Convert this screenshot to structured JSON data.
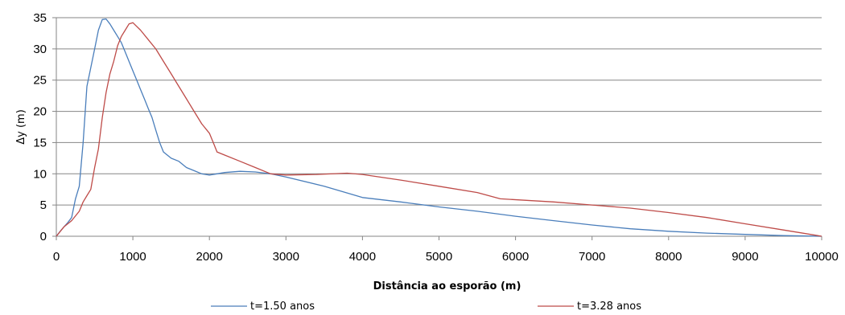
{
  "chart_data": {
    "type": "line",
    "xlabel": "Distância ao esporão (m)",
    "ylabel": "Δy (m)",
    "xlim": [
      0,
      10000
    ],
    "ylim": [
      0,
      35
    ],
    "xticks": [
      "0",
      "1000",
      "2000",
      "3000",
      "4000",
      "5000",
      "6000",
      "7000",
      "8000",
      "9000",
      "10000"
    ],
    "yticks": [
      "0",
      "5",
      "10",
      "15",
      "20",
      "25",
      "30",
      "35"
    ],
    "grid": "horizontal",
    "legend_position": "bottom",
    "series": [
      {
        "name": "t=1.50 anos",
        "color": "#4a7ebb",
        "x": [
          0,
          50,
          100,
          150,
          200,
          250,
          300,
          350,
          400,
          450,
          500,
          550,
          600,
          650,
          700,
          750,
          800,
          850,
          900,
          950,
          1000,
          1050,
          1100,
          1150,
          1200,
          1250,
          1300,
          1350,
          1400,
          1450,
          1500,
          1600,
          1700,
          1800,
          1900,
          2000,
          2100,
          2200,
          2400,
          2600,
          2800,
          3000,
          3500,
          4000,
          4500,
          5000,
          5500,
          6000,
          6500,
          7000,
          7500,
          8000,
          8500,
          9000,
          9500,
          10000
        ],
        "values": [
          0,
          0.8,
          1.5,
          2.2,
          3,
          6,
          8,
          15,
          24,
          27,
          30,
          33,
          34.7,
          34.8,
          34,
          33,
          32,
          31,
          29.5,
          28,
          26.5,
          25,
          23.5,
          22,
          20.5,
          19,
          17,
          15,
          13.5,
          13,
          12.5,
          12,
          11,
          10.5,
          10,
          9.8,
          10,
          10.2,
          10.4,
          10.3,
          10,
          9.5,
          8,
          6.2,
          5.5,
          4.7,
          4,
          3.2,
          2.5,
          1.8,
          1.2,
          0.8,
          0.5,
          0.3,
          0.1,
          0
        ]
      },
      {
        "name": "t=3.28 anos",
        "color": "#be4b48",
        "x": [
          0,
          100,
          200,
          300,
          350,
          400,
          450,
          500,
          550,
          600,
          650,
          700,
          750,
          800,
          850,
          900,
          950,
          1000,
          1100,
          1200,
          1300,
          1400,
          1500,
          1600,
          1700,
          1800,
          1900,
          2000,
          2050,
          2100,
          2200,
          2400,
          2600,
          2800,
          3000,
          3400,
          3800,
          4000,
          4500,
          5000,
          5500,
          5800,
          6500,
          7000,
          7500,
          8000,
          8500,
          9000,
          9500,
          10000
        ],
        "values": [
          0,
          1.5,
          2.5,
          4,
          5.5,
          6.5,
          7.5,
          11,
          14,
          19,
          23,
          26,
          28,
          30.5,
          32,
          33,
          34,
          34.2,
          33,
          31.5,
          30,
          28,
          26,
          24,
          22,
          20,
          18,
          16.5,
          15,
          13.5,
          13,
          12,
          11,
          10,
          9.8,
          9.9,
          10.1,
          9.9,
          9,
          8,
          7,
          6,
          5.5,
          5,
          4.5,
          3.8,
          3,
          2,
          1,
          0
        ]
      }
    ]
  }
}
